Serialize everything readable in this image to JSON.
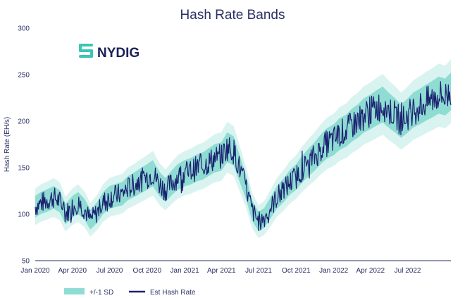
{
  "chart_data": {
    "type": "line",
    "title": "Hash Rate Bands",
    "logo": "NYDIG",
    "ylabel": "Hash Rate (EH/s)",
    "xlabel": "",
    "ylim": [
      50,
      300
    ],
    "yticks": [
      "300",
      "250",
      "200",
      "150",
      "100",
      "50"
    ],
    "xlim": [
      "2020-01-01",
      "2022-10-15"
    ],
    "xticks": [
      {
        "label": "Jan 2020",
        "date": "2020-01-01"
      },
      {
        "label": "Apr 2020",
        "date": "2020-04-01"
      },
      {
        "label": "Jul 2020",
        "date": "2020-07-01"
      },
      {
        "label": "Oct 2020",
        "date": "2020-10-01"
      },
      {
        "label": "Jan 2021",
        "date": "2021-01-01"
      },
      {
        "label": "Apr 2021",
        "date": "2021-04-01"
      },
      {
        "label": "Jul 2021",
        "date": "2021-07-01"
      },
      {
        "label": "Oct 2021",
        "date": "2021-10-01"
      },
      {
        "label": "Jan 2022",
        "date": "2022-01-01"
      },
      {
        "label": "Apr 2022",
        "date": "2022-04-01"
      },
      {
        "label": "Jul 2022",
        "date": "2022-07-01"
      }
    ],
    "legend": {
      "position": "bottom-left",
      "band_label": "+/-1 SD",
      "line_label": "Est Hash Rate"
    },
    "colors": {
      "band_outer": "#d9f3f0",
      "band_inner": "#8fdcd3",
      "line": "#1a2270",
      "logo": "#3cc4b4"
    },
    "series": [
      {
        "name": "Est Hash Rate",
        "points": [
          [
            "2020-01-01",
            108
          ],
          [
            "2020-01-15",
            112
          ],
          [
            "2020-02-01",
            115
          ],
          [
            "2020-02-15",
            118
          ],
          [
            "2020-03-01",
            114
          ],
          [
            "2020-03-15",
            100
          ],
          [
            "2020-04-01",
            108
          ],
          [
            "2020-04-15",
            112
          ],
          [
            "2020-05-01",
            105
          ],
          [
            "2020-05-15",
            94
          ],
          [
            "2020-06-01",
            102
          ],
          [
            "2020-06-15",
            112
          ],
          [
            "2020-07-01",
            118
          ],
          [
            "2020-07-15",
            120
          ],
          [
            "2020-08-01",
            122
          ],
          [
            "2020-08-15",
            128
          ],
          [
            "2020-09-01",
            132
          ],
          [
            "2020-09-15",
            136
          ],
          [
            "2020-10-01",
            140
          ],
          [
            "2020-10-15",
            144
          ],
          [
            "2020-11-01",
            132
          ],
          [
            "2020-11-15",
            126
          ],
          [
            "2020-12-01",
            134
          ],
          [
            "2020-12-15",
            140
          ],
          [
            "2021-01-01",
            144
          ],
          [
            "2021-01-15",
            146
          ],
          [
            "2021-02-01",
            150
          ],
          [
            "2021-02-15",
            152
          ],
          [
            "2021-03-01",
            156
          ],
          [
            "2021-03-15",
            160
          ],
          [
            "2021-04-01",
            162
          ],
          [
            "2021-04-15",
            172
          ],
          [
            "2021-05-01",
            168
          ],
          [
            "2021-05-15",
            150
          ],
          [
            "2021-06-01",
            128
          ],
          [
            "2021-06-15",
            104
          ],
          [
            "2021-07-01",
            92
          ],
          [
            "2021-07-15",
            96
          ],
          [
            "2021-08-01",
            108
          ],
          [
            "2021-08-15",
            118
          ],
          [
            "2021-09-01",
            126
          ],
          [
            "2021-09-15",
            134
          ],
          [
            "2021-10-01",
            140
          ],
          [
            "2021-10-15",
            148
          ],
          [
            "2021-11-01",
            156
          ],
          [
            "2021-11-15",
            162
          ],
          [
            "2021-12-01",
            170
          ],
          [
            "2021-12-15",
            176
          ],
          [
            "2022-01-01",
            180
          ],
          [
            "2022-01-15",
            186
          ],
          [
            "2022-02-01",
            190
          ],
          [
            "2022-02-15",
            196
          ],
          [
            "2022-03-01",
            200
          ],
          [
            "2022-03-15",
            206
          ],
          [
            "2022-04-01",
            210
          ],
          [
            "2022-04-15",
            214
          ],
          [
            "2022-05-01",
            218
          ],
          [
            "2022-05-15",
            212
          ],
          [
            "2022-06-01",
            206
          ],
          [
            "2022-06-15",
            200
          ],
          [
            "2022-07-01",
            206
          ],
          [
            "2022-07-15",
            212
          ],
          [
            "2022-08-01",
            216
          ],
          [
            "2022-08-15",
            220
          ],
          [
            "2022-09-01",
            224
          ],
          [
            "2022-09-15",
            228
          ],
          [
            "2022-10-01",
            226
          ],
          [
            "2022-10-15",
            232
          ]
        ]
      }
    ]
  }
}
